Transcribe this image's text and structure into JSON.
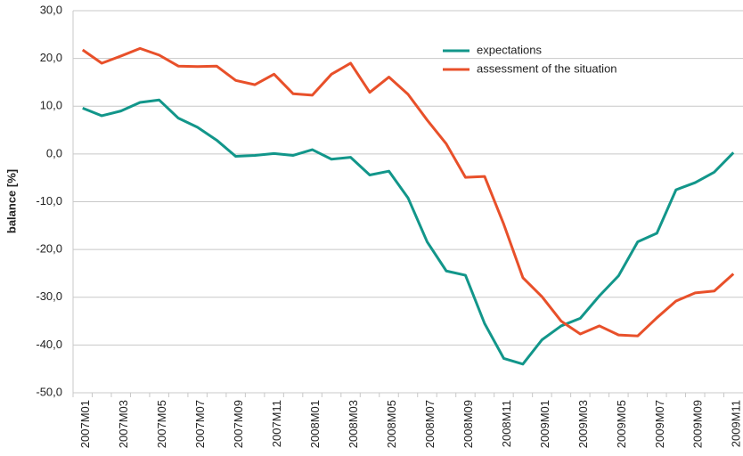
{
  "chart_data": {
    "type": "line",
    "y_label": "balance [%]",
    "categories": [
      "2007M01",
      null,
      "2007M03",
      null,
      "2007M05",
      null,
      "2007M07",
      null,
      "2007M09",
      null,
      "2007M11",
      null,
      "2008M01",
      null,
      "2008M03",
      null,
      "2008M05",
      null,
      "2008M07",
      null,
      "2008M09",
      null,
      "2008M11",
      null,
      "2009M01",
      null,
      "2009M03",
      null,
      "2009M05",
      null,
      "2009M07",
      null,
      "2009M09",
      null,
      "2009M11"
    ],
    "series": [
      {
        "name": "expectations",
        "color": "#12968a",
        "values": [
          9.6,
          8.0,
          9.0,
          10.8,
          11.3,
          7.5,
          5.6,
          2.9,
          -0.5,
          -0.3,
          0.1,
          -0.3,
          0.9,
          -1.1,
          -0.7,
          -4.4,
          -3.6,
          -9.2,
          -18.4,
          -24.5,
          -25.4,
          -35.5,
          -42.8,
          -44.0,
          -38.9,
          -36.0,
          -34.4,
          -29.7,
          -25.5,
          -18.4,
          -16.6,
          -7.5,
          -6.0,
          -3.8,
          0.3
        ]
      },
      {
        "name": "assessment of the situation",
        "color": "#e8502a",
        "values": [
          21.8,
          19.0,
          20.5,
          22.1,
          20.7,
          18.4,
          18.3,
          18.4,
          15.4,
          14.5,
          16.7,
          12.6,
          12.3,
          16.7,
          19.0,
          12.9,
          16.1,
          12.5,
          7.1,
          2.1,
          -4.9,
          -4.7,
          -14.7,
          -25.9,
          -29.9,
          -35.0,
          -37.7,
          -36.0,
          -37.9,
          -38.1,
          -34.3,
          -30.8,
          -29.1,
          -28.7,
          -25.1
        ]
      }
    ],
    "ylim": [
      -50,
      30
    ],
    "yticks": [
      {
        "value": -50,
        "label": "-50,0"
      },
      {
        "value": -40,
        "label": "-40,0"
      },
      {
        "value": -30,
        "label": "-30,0"
      },
      {
        "value": -20,
        "label": "-20,0"
      },
      {
        "value": -10,
        "label": "-10,0"
      },
      {
        "value": 0,
        "label": "0,0"
      },
      {
        "value": 10,
        "label": "10,0"
      },
      {
        "value": 20,
        "label": "20,0"
      },
      {
        "value": 30,
        "label": "30,0"
      }
    ],
    "grid": true,
    "legend": "top-right"
  }
}
